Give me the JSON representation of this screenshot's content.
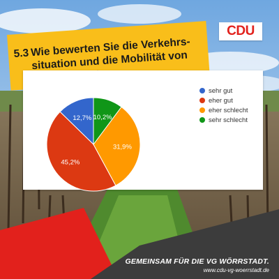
{
  "brand": {
    "logo_text": "CDU",
    "red": "#e2211c",
    "yellow": "#f9be1a",
    "dark": "#3c3c3c"
  },
  "question": {
    "number": "5.3",
    "text": "Wie bewerten Sie die Verkehrs-situation und die Mobilität von Autofahrern?"
  },
  "chart_data": {
    "type": "pie",
    "title": "",
    "categories": [
      "sehr gut",
      "eher gut",
      "eher schlecht",
      "sehr schlecht"
    ],
    "values": [
      12.7,
      45.2,
      31.9,
      10.2
    ],
    "labels": [
      "12,7%",
      "45,2%",
      "31,9%",
      "10,2%"
    ],
    "colors": [
      "#3366cc",
      "#dc3912",
      "#ff9900",
      "#109618"
    ],
    "legend_placement": "right"
  },
  "footer": {
    "slogan": "GEMEINSAM FÜR DIE VG WÖRRSTADT.",
    "url": "www.cdu-vg-woerrstadt.de"
  }
}
